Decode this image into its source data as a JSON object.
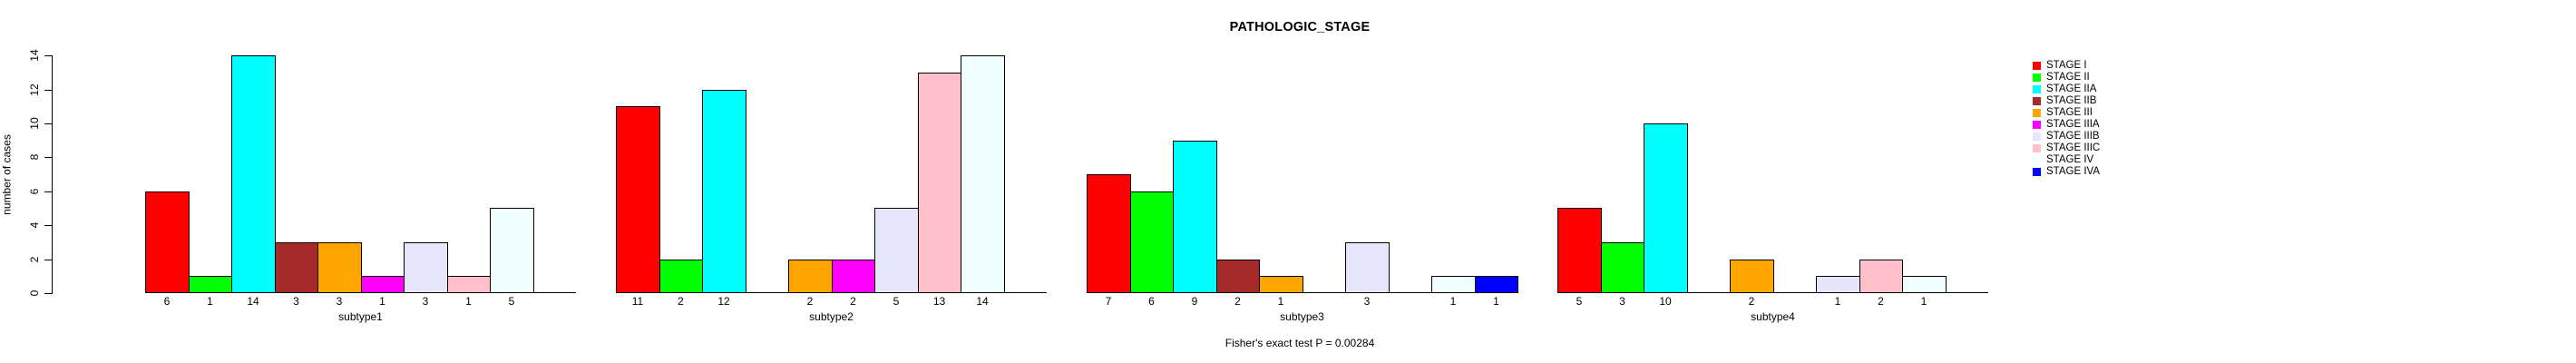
{
  "chart_data": {
    "type": "bar",
    "title": "PATHOLOGIC_STAGE",
    "ylabel": "number of cases",
    "annotation": "Fisher's exact test P = 0.00284",
    "categories": [
      "subtype1",
      "subtype2",
      "subtype3",
      "subtype4"
    ],
    "ylim": [
      0,
      14
    ],
    "y_ticks": [
      0,
      2,
      4,
      6,
      8,
      10,
      12,
      14
    ],
    "grid": false,
    "legend_position": "right",
    "bar_value_labels": "count shown under each nonzero bar",
    "series": [
      {
        "name": "STAGE I",
        "color": "#FF0000",
        "values": [
          6,
          11,
          7,
          5
        ]
      },
      {
        "name": "STAGE II",
        "color": "#00FF00",
        "values": [
          1,
          2,
          6,
          3
        ]
      },
      {
        "name": "STAGE IIA",
        "color": "#00FFFF",
        "values": [
          14,
          12,
          9,
          10
        ]
      },
      {
        "name": "STAGE IIB",
        "color": "#A52A2A",
        "values": [
          3,
          0,
          2,
          0
        ]
      },
      {
        "name": "STAGE III",
        "color": "#FFA500",
        "values": [
          3,
          2,
          1,
          2
        ]
      },
      {
        "name": "STAGE IIIA",
        "color": "#FF00FF",
        "values": [
          1,
          2,
          0,
          0
        ]
      },
      {
        "name": "STAGE IIIB",
        "color": "#E6E6FA",
        "values": [
          3,
          5,
          3,
          1
        ]
      },
      {
        "name": "STAGE IIIC",
        "color": "#FFC0CB",
        "values": [
          1,
          13,
          0,
          2
        ]
      },
      {
        "name": "STAGE IV",
        "color": "#F0FFFF",
        "values": [
          5,
          14,
          1,
          1
        ]
      },
      {
        "name": "STAGE IVA",
        "color": "#0000FF",
        "values": [
          0,
          0,
          1,
          0
        ]
      }
    ]
  }
}
